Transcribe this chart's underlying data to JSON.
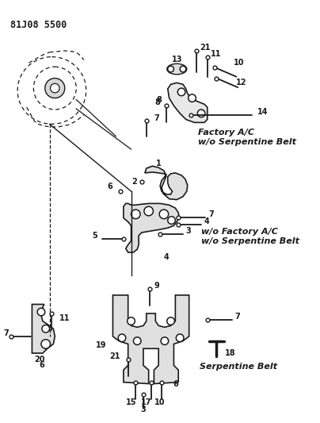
{
  "title": "81J08 5500",
  "bg_color": "#ffffff",
  "line_color": "#1a1a1a",
  "text_color": "#1a1a1a",
  "fig_width": 4.04,
  "fig_height": 5.33,
  "dpi": 100,
  "labels": {
    "factory_ac": "Factory A/C\nw/o Serpentine Belt",
    "wo_factory_ac": "w/o Factory A/C\nw/o Serpentine Belt",
    "serpentine": "Serpentine Belt"
  }
}
